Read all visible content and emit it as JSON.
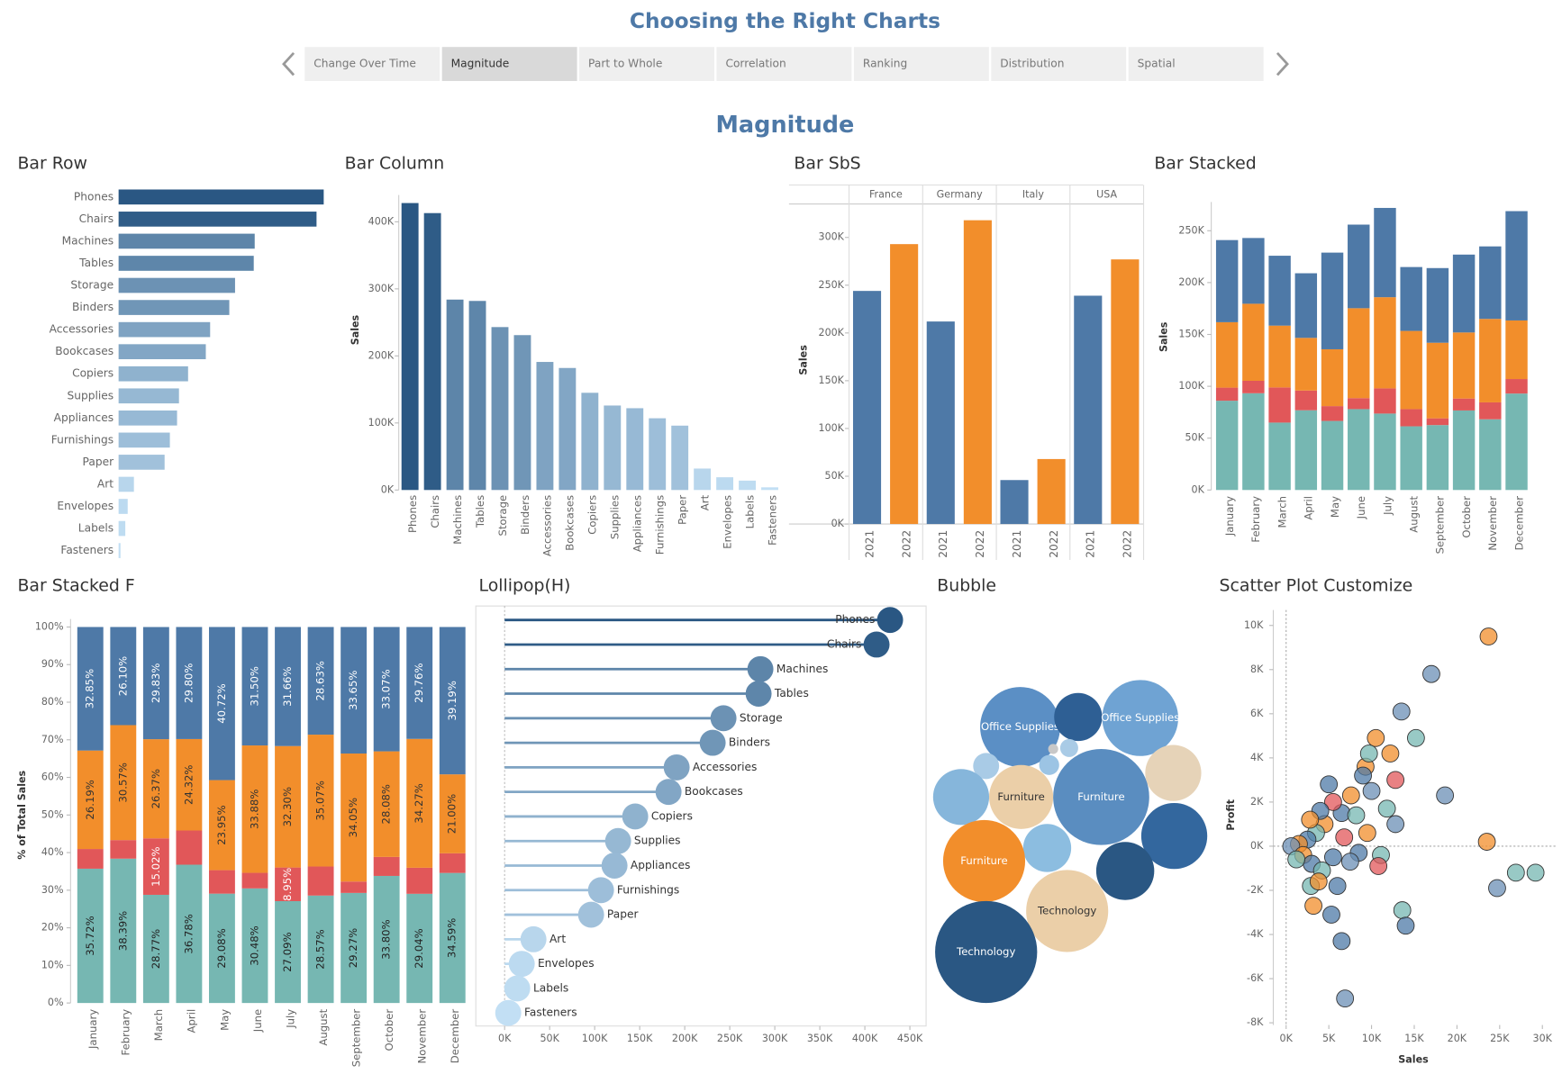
{
  "header": {
    "title": "Choosing the Right Charts",
    "tabs": [
      "Change Over Time",
      "Magnitude",
      "Part to Whole",
      "Correlation",
      "Ranking",
      "Distribution",
      "Spatial"
    ],
    "selected_tab": "Magnitude",
    "section_title": "Magnitude"
  },
  "chart_data": [
    {
      "type": "hbar",
      "title": "Bar Row",
      "categories": [
        "Phones",
        "Chairs",
        "Machines",
        "Tables",
        "Storage",
        "Binders",
        "Accessories",
        "Bookcases",
        "Copiers",
        "Supplies",
        "Appliances",
        "Furnishings",
        "Paper",
        "Art",
        "Envelopes",
        "Labels",
        "Fasteners"
      ],
      "values": [
        428000,
        413000,
        284000,
        282000,
        243000,
        231000,
        191000,
        182000,
        145000,
        126000,
        122000,
        107000,
        96000,
        32000,
        19000,
        14000,
        4000
      ],
      "color_scale": [
        "#c3e0f5",
        "#2a5783"
      ]
    },
    {
      "type": "bar",
      "title": "Bar Column",
      "ylabel": "Sales",
      "categories": [
        "Phones",
        "Chairs",
        "Machines",
        "Tables",
        "Storage",
        "Binders",
        "Accessories",
        "Bookcases",
        "Copiers",
        "Supplies",
        "Appliances",
        "Furnishings",
        "Paper",
        "Art",
        "Envelopes",
        "Labels",
        "Fasteners"
      ],
      "values": [
        428000,
        413000,
        284000,
        282000,
        243000,
        231000,
        191000,
        182000,
        145000,
        126000,
        122000,
        107000,
        96000,
        32000,
        19000,
        14000,
        4000
      ],
      "color_scale": [
        "#c3e0f5",
        "#2a5783"
      ],
      "ylim": [
        0,
        440000
      ],
      "yticks": [
        {
          "value": 0,
          "label": "0K"
        },
        {
          "value": 100000,
          "label": "100K"
        },
        {
          "value": 200000,
          "label": "200K"
        },
        {
          "value": 300000,
          "label": "300K"
        },
        {
          "value": 400000,
          "label": "400K"
        }
      ]
    },
    {
      "type": "grouped_bar",
      "title": "Bar SbS",
      "ylabel": "Sales",
      "categories": [
        "France",
        "Germany",
        "Italy",
        "USA"
      ],
      "series": [
        {
          "name": "2021",
          "color": "#4e79a7",
          "values": [
            244000,
            212000,
            46000,
            239000
          ]
        },
        {
          "name": "2022",
          "color": "#f28e2b",
          "values": [
            293000,
            318000,
            68000,
            277000
          ]
        }
      ],
      "ylim": [
        0,
        335000
      ],
      "yticks": [
        {
          "value": 0,
          "label": "0K"
        },
        {
          "value": 50000,
          "label": "50K"
        },
        {
          "value": 100000,
          "label": "100K"
        },
        {
          "value": 150000,
          "label": "150K"
        },
        {
          "value": 200000,
          "label": "200K"
        },
        {
          "value": 250000,
          "label": "250K"
        },
        {
          "value": 300000,
          "label": "300K"
        }
      ]
    },
    {
      "type": "stacked_bar",
      "title": "Bar Stacked",
      "ylabel": "Sales",
      "categories": [
        "January",
        "February",
        "March",
        "April",
        "May",
        "June",
        "July",
        "August",
        "September",
        "October",
        "November",
        "December"
      ],
      "series": [
        {
          "color": "#76b7b2",
          "values": [
            86100,
            93300,
            65000,
            76900,
            66600,
            78000,
            73700,
            61400,
            62600,
            76700,
            68200,
            93000
          ]
        },
        {
          "color": "#e15759",
          "values": [
            12600,
            12000,
            33900,
            19000,
            14300,
            10600,
            24300,
            16600,
            6500,
            11500,
            16300,
            14000
          ]
        },
        {
          "color": "#f28e2b",
          "values": [
            63100,
            74300,
            59600,
            50800,
            54800,
            86700,
            87900,
            75400,
            72900,
            63700,
            80500,
            56500
          ]
        },
        {
          "color": "#4e79a7",
          "values": [
            79200,
            63400,
            67400,
            62300,
            93200,
            80600,
            86100,
            61600,
            72000,
            75100,
            69900,
            105400
          ]
        }
      ],
      "ylim": [
        0,
        270000
      ],
      "yticks": [
        {
          "value": 0,
          "label": "0K"
        },
        {
          "value": 50000,
          "label": "50K"
        },
        {
          "value": 100000,
          "label": "100K"
        },
        {
          "value": 150000,
          "label": "150K"
        },
        {
          "value": 200000,
          "label": "200K"
        },
        {
          "value": 250000,
          "label": "250K"
        }
      ]
    },
    {
      "type": "stacked_bar",
      "title": "Bar Stacked F",
      "ylabel": "% of Total Sales",
      "categories": [
        "January",
        "February",
        "March",
        "April",
        "May",
        "June",
        "July",
        "August",
        "September",
        "October",
        "November",
        "December"
      ],
      "series": [
        {
          "color": "#76b7b2",
          "label_color": "#222222",
          "values": [
            35.72,
            38.39,
            28.77,
            36.78,
            29.08,
            30.48,
            27.09,
            28.57,
            29.27,
            33.8,
            29.04,
            34.59
          ],
          "value_labels": [
            "35.72%",
            "38.39%",
            "28.77%",
            "36.78%",
            "29.08%",
            "30.48%",
            "27.09%",
            "28.57%",
            "29.27%",
            "33.80%",
            "29.04%",
            "34.59%"
          ]
        },
        {
          "color": "#e15759",
          "label_color": "#ffffff",
          "values": [
            5.24,
            4.94,
            15.02,
            9.1,
            6.25,
            4.14,
            8.95,
            7.73,
            3.03,
            5.05,
            6.93,
            5.22
          ],
          "value_labels": [
            null,
            null,
            "15.02%",
            null,
            null,
            null,
            "8.95%",
            null,
            null,
            null,
            null,
            null
          ]
        },
        {
          "color": "#f28e2b",
          "label_color": "#333333",
          "values": [
            26.19,
            30.57,
            26.37,
            24.32,
            23.95,
            33.88,
            32.3,
            35.07,
            34.05,
            28.08,
            34.27,
            21.0
          ],
          "value_labels": [
            "26.19%",
            "30.57%",
            "26.37%",
            "24.32%",
            "23.95%",
            "33.88%",
            "32.30%",
            "35.07%",
            "34.05%",
            "28.08%",
            "34.27%",
            "21.00%"
          ]
        },
        {
          "color": "#4e79a7",
          "label_color": "#ffffff",
          "values": [
            32.85,
            26.1,
            29.83,
            29.8,
            40.72,
            31.5,
            31.66,
            28.63,
            33.65,
            33.07,
            29.76,
            39.19
          ],
          "value_labels": [
            "32.85%",
            "26.10%",
            "29.83%",
            "29.80%",
            "40.72%",
            "31.50%",
            "31.66%",
            "28.63%",
            "33.65%",
            "33.07%",
            "29.76%",
            "39.19%"
          ]
        }
      ],
      "ylim": [
        0,
        100
      ],
      "yticks": [
        {
          "value": 0,
          "label": "0%"
        },
        {
          "value": 10,
          "label": "10%"
        },
        {
          "value": 20,
          "label": "20%"
        },
        {
          "value": 30,
          "label": "30%"
        },
        {
          "value": 40,
          "label": "40%"
        },
        {
          "value": 50,
          "label": "50%"
        },
        {
          "value": 60,
          "label": "60%"
        },
        {
          "value": 70,
          "label": "70%"
        },
        {
          "value": 80,
          "label": "80%"
        },
        {
          "value": 90,
          "label": "90%"
        },
        {
          "value": 100,
          "label": "100%"
        }
      ]
    },
    {
      "type": "lollipop",
      "title": "Lollipop(H)",
      "categories": [
        "Phones",
        "Chairs",
        "Machines",
        "Tables",
        "Storage",
        "Binders",
        "Accessories",
        "Bookcases",
        "Copiers",
        "Supplies",
        "Appliances",
        "Furnishings",
        "Paper",
        "Art",
        "Envelopes",
        "Labels",
        "Fasteners"
      ],
      "values": [
        428000,
        413000,
        284000,
        282000,
        243000,
        231000,
        191000,
        182000,
        145000,
        126000,
        122000,
        107000,
        96000,
        32000,
        19000,
        14000,
        4000
      ],
      "color_scale": [
        "#c3e0f5",
        "#2a5783"
      ],
      "xlim": [
        -32000,
        468000
      ],
      "xticks": [
        {
          "value": 0,
          "label": "0K"
        },
        {
          "value": 50000,
          "label": "50K"
        },
        {
          "value": 100000,
          "label": "100K"
        },
        {
          "value": 150000,
          "label": "150K"
        },
        {
          "value": 200000,
          "label": "200K"
        },
        {
          "value": 250000,
          "label": "250K"
        },
        {
          "value": 300000,
          "label": "300K"
        },
        {
          "value": 350000,
          "label": "350K"
        },
        {
          "value": 400000,
          "label": "400K"
        },
        {
          "value": 450000,
          "label": "450K"
        }
      ]
    },
    {
      "type": "bubble",
      "title": "Bubble",
      "labels": [
        "Office Supplies",
        null,
        "Office Supplies",
        null,
        null,
        null,
        null,
        null,
        null,
        "Furniture",
        "Furniture",
        null,
        null,
        "Furniture",
        null,
        "Technology",
        "Technology"
      ],
      "values": [
        160000,
        57600,
        144400,
        16900,
        2500,
        8100,
        10000,
        78400,
        78400,
        102400,
        230400,
        108900,
        57600,
        168100,
        84100,
        168100,
        260100
      ],
      "colors": [
        "#5b8fc5",
        "#2e5f94",
        "#6fa3d3",
        "#a9cbe6",
        "#c8c8c8",
        "#a9cbe6",
        "#9cc4e4",
        "#e6d3b8",
        "#86b6db",
        "#ebcfa8",
        "#5a8dc0",
        "#33679e",
        "#8cbde0",
        "#f28e2b",
        "#2a5783",
        "#ebcfa8",
        "#2a5783"
      ]
    },
    {
      "type": "scatter",
      "title": "Scatter Plot Customize",
      "xlabel": "Sales",
      "ylabel": "Profit",
      "x": [
        23700,
        17000,
        13500,
        15200,
        18600,
        23500,
        24700,
        26900,
        29200,
        13600,
        14000,
        6500,
        6900,
        5300,
        3200,
        2900,
        10500,
        12200,
        12800,
        11800,
        12800,
        11100,
        10800,
        8500,
        9300,
        9700,
        9000,
        7600,
        6500,
        5500,
        4500,
        3500,
        2500,
        1500,
        600,
        2000,
        3000,
        4200,
        5500,
        6800,
        7500,
        4000,
        2800,
        1200,
        5000,
        8200,
        6000,
        3800,
        10000,
        9500
      ],
      "values": [
        9500,
        7800,
        6100,
        4900,
        2300,
        200,
        -1900,
        -1200,
        -1200,
        -2900,
        -3600,
        -4300,
        -6900,
        -3100,
        -2700,
        -1800,
        4900,
        4200,
        3000,
        1700,
        1000,
        -400,
        -900,
        -300,
        3600,
        4200,
        3200,
        2300,
        1500,
        2000,
        1000,
        600,
        300,
        100,
        0,
        -400,
        -800,
        -1100,
        -500,
        400,
        -700,
        1600,
        1200,
        -600,
        2800,
        1400,
        -1800,
        -1600,
        2500,
        600
      ],
      "colors": [
        "#f28e2b",
        "#6b8fb5",
        "#6b8fb5",
        "#76b7b2",
        "#6b8fb5",
        "#f28e2b",
        "#6b8fb5",
        "#76b7b2",
        "#76b7b2",
        "#76b7b2",
        "#4e79a7",
        "#4e79a7",
        "#6b8fb5",
        "#4e79a7",
        "#f28e2b",
        "#76b7b2",
        "#f28e2b",
        "#f28e2b",
        "#e15759",
        "#76b7b2",
        "#6b8fb5",
        "#76b7b2",
        "#e15759",
        "#4e79a7",
        "#f28e2b",
        "#76b7b2",
        "#4e79a7",
        "#f28e2b",
        "#4e79a7",
        "#e15759",
        "#f28e2b",
        "#76b7b2",
        "#4e79a7",
        "#f28e2b",
        "#6b8fb5",
        "#f28e2b",
        "#4e79a7",
        "#76b7b2",
        "#4e79a7",
        "#e15759",
        "#6b8fb5",
        "#4e79a7",
        "#f28e2b",
        "#76b7b2",
        "#4e79a7",
        "#76b7b2",
        "#4e79a7",
        "#f28e2b",
        "#6b8fb5",
        "#f28e2b"
      ],
      "xlim": [
        -1500,
        31650
      ],
      "ylim": [
        -8100,
        10700
      ],
      "xticks": [
        {
          "value": 0,
          "label": "0K"
        },
        {
          "value": 5000,
          "label": "5K"
        },
        {
          "value": 10000,
          "label": "10K"
        },
        {
          "value": 15000,
          "label": "15K"
        },
        {
          "value": 20000,
          "label": "20K"
        },
        {
          "value": 25000,
          "label": "25K"
        },
        {
          "value": 30000,
          "label": "30K"
        }
      ],
      "yticks": [
        {
          "value": -8000,
          "label": "-8K"
        },
        {
          "value": -6000,
          "label": "-6K"
        },
        {
          "value": -4000,
          "label": "-4K"
        },
        {
          "value": -2000,
          "label": "-2K"
        },
        {
          "value": 0,
          "label": "0K"
        },
        {
          "value": 2000,
          "label": "2K"
        },
        {
          "value": 4000,
          "label": "4K"
        },
        {
          "value": 6000,
          "label": "6K"
        },
        {
          "value": 8000,
          "label": "8K"
        },
        {
          "value": 10000,
          "label": "10K"
        }
      ]
    }
  ]
}
